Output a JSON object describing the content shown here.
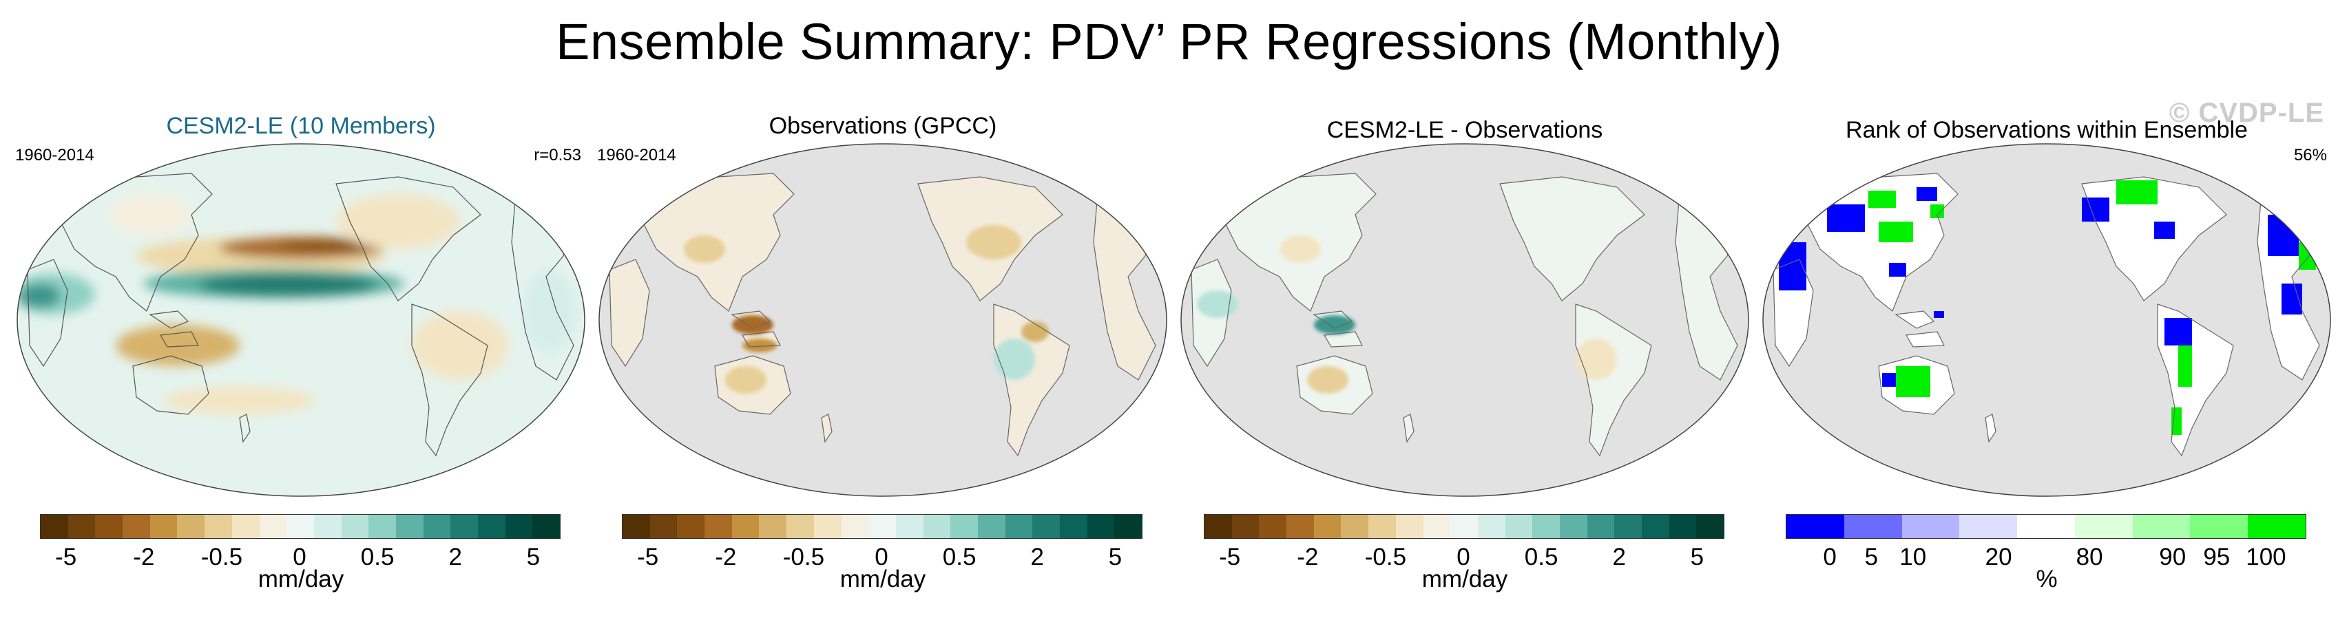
{
  "title": "Ensemble Summary: PDV’ PR Regressions (Monthly)",
  "watermark": "© CVDP-LE",
  "colors": {
    "land": "#e3e3e3",
    "ocean_neutral": "#e4f4ef",
    "coast": "#555555",
    "rank_blue": "#0000ff",
    "rank_green": "#00f000"
  },
  "diverging_colorbar": {
    "colors": [
      "#543005",
      "#70420c",
      "#8c5213",
      "#a96b26",
      "#c4913e",
      "#d7b26a",
      "#e8cf98",
      "#f3e5c3",
      "#f6f0e3",
      "#edf6f3",
      "#d6eeea",
      "#b7e2da",
      "#8fd0c4",
      "#5fb2a6",
      "#3a958b",
      "#207b71",
      "#0b6359",
      "#014b40",
      "#003c30"
    ],
    "tick_labels": [
      "-5",
      "-2",
      "-0.5",
      "0",
      "0.5",
      "2",
      "5"
    ],
    "label": "mm/day"
  },
  "rank_colorbar": {
    "colors": [
      "#0000ff",
      "#6b6bff",
      "#b3b3ff",
      "#dedeff",
      "#ffffff",
      "#dcffdc",
      "#aaffaa",
      "#7dff7d",
      "#00f000"
    ],
    "tick_labels": [
      "0",
      "5",
      "10",
      "20",
      "80",
      "90",
      "95",
      "100"
    ],
    "label": "%"
  },
  "panels": [
    {
      "title": "CESM2-LE (10 Members)",
      "period": "1960-2014",
      "stat": "r=0.53"
    },
    {
      "title": "Observations (GPCC)",
      "period": "1960-2014",
      "stat": ""
    },
    {
      "title": "CESM2-LE - Observations",
      "period": "",
      "stat": ""
    },
    {
      "title": "Rank of Observations within Ensemble",
      "period": "",
      "stat": "56%"
    }
  ]
}
